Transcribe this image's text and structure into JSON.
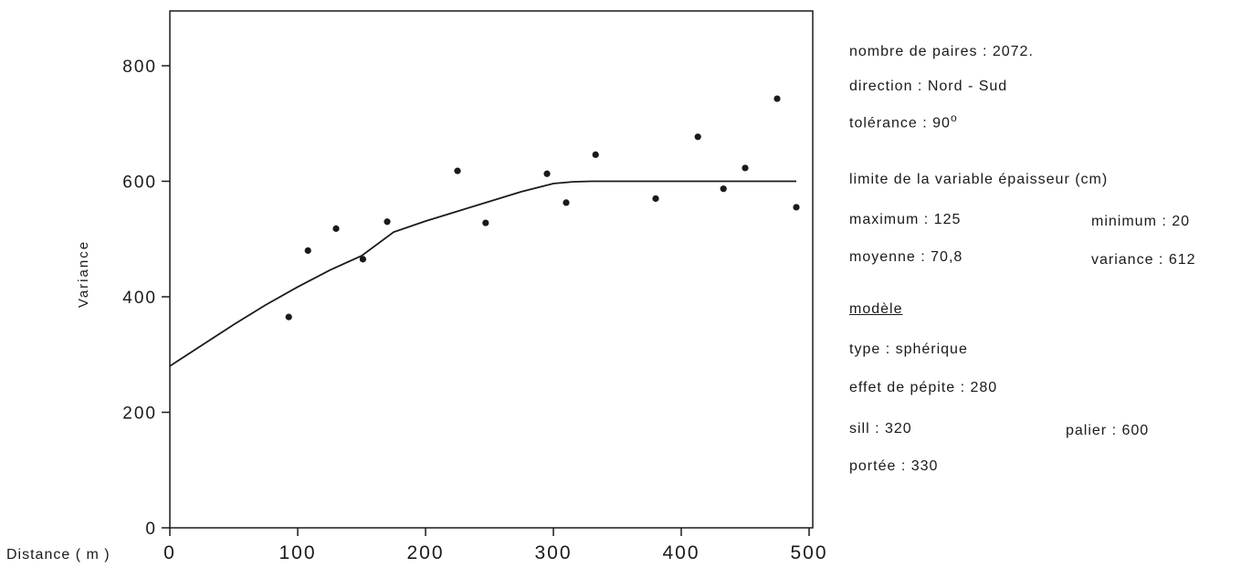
{
  "chart_data": {
    "type": "scatter",
    "ylabel": "Variance",
    "xlabel": "Distance ( m )",
    "xlim": [
      0,
      500
    ],
    "ylim": [
      0,
      800
    ],
    "x_ticks": [
      "0",
      "100",
      "200",
      "300",
      "400",
      "500"
    ],
    "y_ticks": [
      "0",
      "200",
      "400",
      "600",
      "800"
    ],
    "x_tick_values": [
      0,
      100,
      200,
      300,
      400,
      500
    ],
    "y_tick_values": [
      0,
      200,
      400,
      600,
      800
    ],
    "grid": false,
    "series": [
      {
        "type": "scatter",
        "x": [
          93,
          108,
          130,
          151,
          170,
          225,
          247,
          295,
          310,
          333,
          380,
          413,
          433,
          450,
          475,
          490
        ],
        "y": [
          365,
          480,
          518,
          465,
          530,
          618,
          528,
          613,
          563,
          646,
          570,
          677,
          587,
          623,
          743,
          555
        ]
      },
      {
        "type": "line",
        "model": "spherical",
        "nugget": 280,
        "sill": 320,
        "range": 330,
        "x": [
          0,
          25,
          50,
          75,
          100,
          125,
          150,
          175,
          200,
          225,
          250,
          275,
          300,
          315,
          330,
          400,
          490
        ],
        "y": [
          280,
          316,
          352,
          386,
          417,
          446,
          471,
          512,
          531,
          548,
          565,
          582,
          596,
          599,
          600,
          600,
          600
        ]
      }
    ]
  },
  "info": {
    "pairs": "nombre de paires : 2072.",
    "direction": "direction : Nord - Sud",
    "tolerance": "tolérance : 90",
    "tolerance_unit": "o",
    "limits_title": "limite de la variable épaisseur (cm)",
    "maximum": "maximum : 125",
    "minimum": "minimum : 20",
    "mean": "moyenne  : 70,8",
    "variance": "variance : 612",
    "model_title": "modèle",
    "type": "type : sphérique",
    "nugget": "effet de pépite : 280",
    "sill": "sill : 320",
    "palier": "palier : 600",
    "portee": "portée : 330"
  }
}
